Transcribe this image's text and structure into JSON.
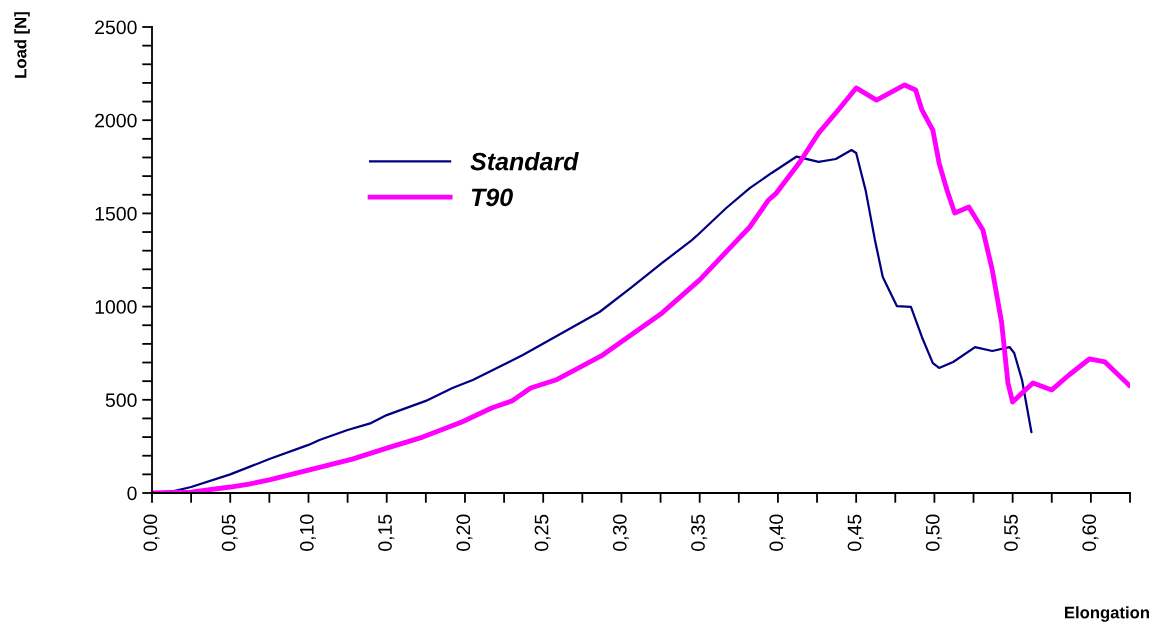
{
  "chart_data": {
    "type": "line",
    "xlabel": "Elongation",
    "ylabel": "Load [N]",
    "legend": "top left",
    "grid": false,
    "marker": "none",
    "line_style": "solid",
    "xlim": [
      0,
      0.625
    ],
    "ylim": [
      0,
      2500
    ],
    "xticks": [
      {
        "value": 0,
        "label": "0,00"
      },
      {
        "value": 0.025,
        "label": null
      },
      {
        "value": 0.05,
        "label": "0,05"
      },
      {
        "value": 0.075,
        "label": null
      },
      {
        "value": 0.1,
        "label": "0,10"
      },
      {
        "value": 0.125,
        "label": null
      },
      {
        "value": 0.15,
        "label": "0,15"
      },
      {
        "value": 0.175,
        "label": null
      },
      {
        "value": 0.2,
        "label": "0,20"
      },
      {
        "value": 0.225,
        "label": null
      },
      {
        "value": 0.25,
        "label": "0,25"
      },
      {
        "value": 0.275,
        "label": null
      },
      {
        "value": 0.3,
        "label": "0,30"
      },
      {
        "value": 0.325,
        "label": null
      },
      {
        "value": 0.35,
        "label": "0,35"
      },
      {
        "value": 0.375,
        "label": null
      },
      {
        "value": 0.4,
        "label": "0,40"
      },
      {
        "value": 0.425,
        "label": null
      },
      {
        "value": 0.45,
        "label": "0,45"
      },
      {
        "value": 0.475,
        "label": null
      },
      {
        "value": 0.5,
        "label": "0,50"
      },
      {
        "value": 0.525,
        "label": null
      },
      {
        "value": 0.55,
        "label": "0,55"
      },
      {
        "value": 0.575,
        "label": null
      },
      {
        "value": 0.6,
        "label": "0,60"
      },
      {
        "value": 0.625,
        "label": null
      }
    ],
    "yticks": [
      0,
      {
        "value": 100,
        "label": null
      },
      {
        "value": 200,
        "label": null
      },
      {
        "value": 300,
        "label": null
      },
      {
        "value": 400,
        "label": null
      },
      500,
      {
        "value": 600,
        "label": null
      },
      {
        "value": 700,
        "label": null
      },
      {
        "value": 800,
        "label": null
      },
      {
        "value": 900,
        "label": null
      },
      1000,
      {
        "value": 1100,
        "label": null
      },
      {
        "value": 1200,
        "label": null
      },
      {
        "value": 1300,
        "label": null
      },
      {
        "value": 1400,
        "label": null
      },
      1500,
      {
        "value": 1600,
        "label": null
      },
      {
        "value": 1700,
        "label": null
      },
      {
        "value": 1800,
        "label": null
      },
      {
        "value": 1900,
        "label": null
      },
      2000,
      {
        "value": 2100,
        "label": null
      },
      {
        "value": 2200,
        "label": null
      },
      {
        "value": 2300,
        "label": null
      },
      {
        "value": 2400,
        "label": null
      },
      2500
    ],
    "series": [
      {
        "name": "Standard",
        "color": "#000080",
        "x": [
          0,
          0.014,
          0.025,
          0.05,
          0.075,
          0.1,
          0.107,
          0.125,
          0.14,
          0.15,
          0.175,
          0.192,
          0.205,
          0.237,
          0.286,
          0.306,
          0.326,
          0.345,
          0.348,
          0.367,
          0.382,
          0.396,
          0.412,
          0.426,
          0.437,
          0.447,
          0.45,
          0.456,
          0.462,
          0.467,
          0.476,
          0.485,
          0.492,
          0.499,
          0.503,
          0.512,
          0.526,
          0.537,
          0.548,
          0.551,
          0.556,
          0.562
        ],
        "values": [
          0,
          10,
          32,
          100,
          182,
          258,
          284,
          338,
          375,
          418,
          494,
          563,
          606,
          740,
          971,
          1100,
          1234,
          1357,
          1379,
          1529,
          1636,
          1717,
          1805,
          1776,
          1792,
          1840,
          1824,
          1626,
          1357,
          1159,
          1003,
          998,
          837,
          697,
          671,
          703,
          783,
          762,
          783,
          751,
          606,
          327
        ]
      },
      {
        "name": "T90",
        "color": "#ff00ff",
        "x": [
          0,
          0.025,
          0.05,
          0.062,
          0.075,
          0.1,
          0.128,
          0.15,
          0.173,
          0.198,
          0.217,
          0.23,
          0.242,
          0.258,
          0.288,
          0.326,
          0.35,
          0.371,
          0.382,
          0.394,
          0.399,
          0.414,
          0.426,
          0.437,
          0.45,
          0.463,
          0.481,
          0.488,
          0.492,
          0.499,
          0.503,
          0.508,
          0.513,
          0.522,
          0.531,
          0.537,
          0.543,
          0.547,
          0.55,
          0.556,
          0.563,
          0.575,
          0.586,
          0.599,
          0.609,
          0.625
        ],
        "values": [
          0,
          5,
          32,
          48,
          70,
          123,
          182,
          241,
          300,
          381,
          456,
          494,
          563,
          606,
          740,
          966,
          1143,
          1330,
          1427,
          1572,
          1609,
          1776,
          1931,
          2039,
          2173,
          2108,
          2189,
          2162,
          2055,
          1947,
          1770,
          1626,
          1502,
          1534,
          1411,
          1196,
          912,
          590,
          488,
          536,
          590,
          553,
          633,
          719,
          703,
          574
        ]
      }
    ]
  }
}
